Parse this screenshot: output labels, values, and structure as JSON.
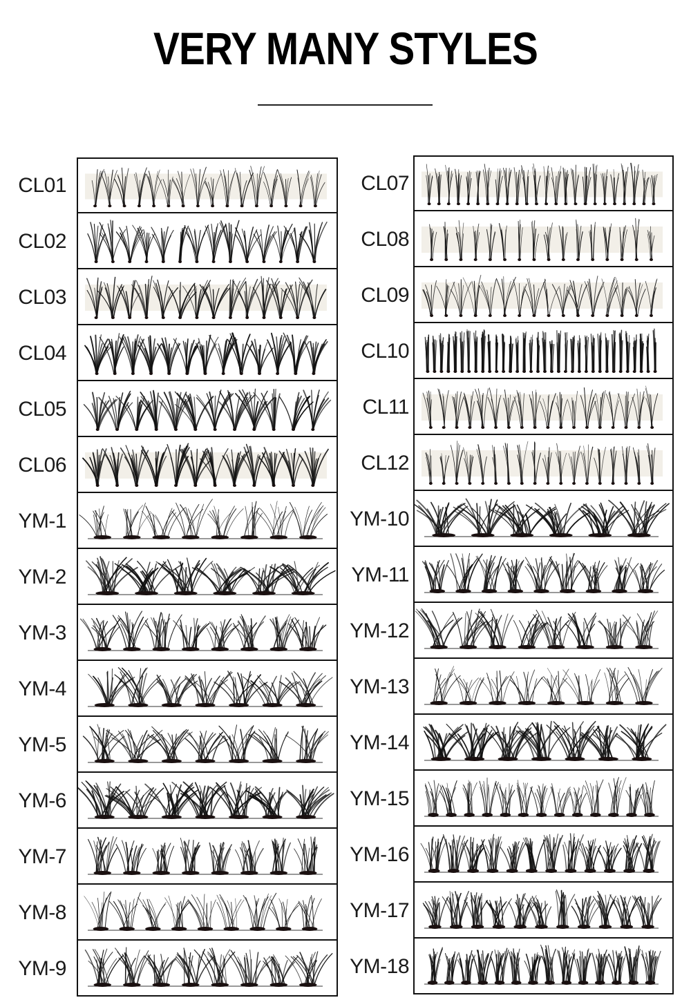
{
  "heading": {
    "title": "VERY MANY STYLES"
  },
  "left_column": [
    {
      "code": "CL01",
      "kind": "cl",
      "tuft": 16,
      "spread": 0.9,
      "dense": 1,
      "tray": true
    },
    {
      "code": "CL02",
      "kind": "cl",
      "tuft": 14,
      "spread": 1.1,
      "dense": 2,
      "tray": false
    },
    {
      "code": "CL03",
      "kind": "cl",
      "tuft": 14,
      "spread": 1.2,
      "dense": 2,
      "tray": true
    },
    {
      "code": "CL04",
      "kind": "cl",
      "tuft": 13,
      "spread": 1.0,
      "dense": 3,
      "tray": false
    },
    {
      "code": "CL05",
      "kind": "cl",
      "tuft": 12,
      "spread": 1.3,
      "dense": 3,
      "tray": false
    },
    {
      "code": "CL06",
      "kind": "cl",
      "tuft": 12,
      "spread": 1.0,
      "dense": 3,
      "tray": true
    },
    {
      "code": "YM-1",
      "kind": "ym",
      "tuft": 8,
      "spread": 1.0,
      "dense": 1,
      "tray": false
    },
    {
      "code": "YM-2",
      "kind": "ym",
      "tuft": 6,
      "spread": 1.3,
      "dense": 3,
      "tray": false
    },
    {
      "code": "YM-3",
      "kind": "ym",
      "tuft": 8,
      "spread": 1.0,
      "dense": 2,
      "tray": false
    },
    {
      "code": "YM-4",
      "kind": "ym",
      "tuft": 7,
      "spread": 1.2,
      "dense": 2,
      "tray": false
    },
    {
      "code": "YM-5",
      "kind": "ym",
      "tuft": 7,
      "spread": 1.3,
      "dense": 2,
      "tray": false
    },
    {
      "code": "YM-6",
      "kind": "ym",
      "tuft": 7,
      "spread": 1.4,
      "dense": 3,
      "tray": false
    },
    {
      "code": "YM-7",
      "kind": "ym",
      "tuft": 8,
      "spread": 0.6,
      "dense": 2,
      "tray": false
    },
    {
      "code": "YM-8",
      "kind": "ym",
      "tuft": 9,
      "spread": 1.0,
      "dense": 1,
      "tray": false
    },
    {
      "code": "YM-9",
      "kind": "ym",
      "tuft": 8,
      "spread": 1.1,
      "dense": 2,
      "tray": false
    }
  ],
  "right_column": [
    {
      "code": "CL07",
      "kind": "cl",
      "tuft": 24,
      "spread": 0.6,
      "dense": 1,
      "tray": true
    },
    {
      "code": "CL08",
      "kind": "cl",
      "tuft": 16,
      "spread": 0.4,
      "dense": 1,
      "tray": true
    },
    {
      "code": "CL09",
      "kind": "cl",
      "tuft": 16,
      "spread": 1.0,
      "dense": 1,
      "tray": true
    },
    {
      "code": "CL10",
      "kind": "cl",
      "tuft": 34,
      "spread": 0.3,
      "dense": 2,
      "tray": false
    },
    {
      "code": "CL11",
      "kind": "cl",
      "tuft": 18,
      "spread": 0.8,
      "dense": 1,
      "tray": true
    },
    {
      "code": "CL12",
      "kind": "cl",
      "tuft": 18,
      "spread": 0.6,
      "dense": 1,
      "tray": true
    },
    {
      "code": "YM-10",
      "kind": "ym",
      "tuft": 6,
      "spread": 1.3,
      "dense": 3,
      "tray": false
    },
    {
      "code": "YM-11",
      "kind": "ym",
      "tuft": 9,
      "spread": 1.0,
      "dense": 2,
      "tray": false
    },
    {
      "code": "YM-12",
      "kind": "ym",
      "tuft": 8,
      "spread": 1.2,
      "dense": 2,
      "tray": false
    },
    {
      "code": "YM-13",
      "kind": "ym",
      "tuft": 8,
      "spread": 1.0,
      "dense": 1,
      "tray": false
    },
    {
      "code": "YM-14",
      "kind": "ym",
      "tuft": 7,
      "spread": 1.2,
      "dense": 3,
      "tray": false
    },
    {
      "code": "YM-15",
      "kind": "ym",
      "tuft": 13,
      "spread": 0.9,
      "dense": 1,
      "tray": false
    },
    {
      "code": "YM-16",
      "kind": "ym",
      "tuft": 12,
      "spread": 0.9,
      "dense": 2,
      "tray": false
    },
    {
      "code": "YM-17",
      "kind": "ym",
      "tuft": 11,
      "spread": 1.0,
      "dense": 2,
      "tray": false
    },
    {
      "code": "YM-18",
      "kind": "ym",
      "tuft": 14,
      "spread": 0.8,
      "dense": 2,
      "tray": false
    }
  ],
  "colors": {
    "lash": "#111111",
    "tray": "#e8e2d6",
    "frame": "#111111"
  }
}
